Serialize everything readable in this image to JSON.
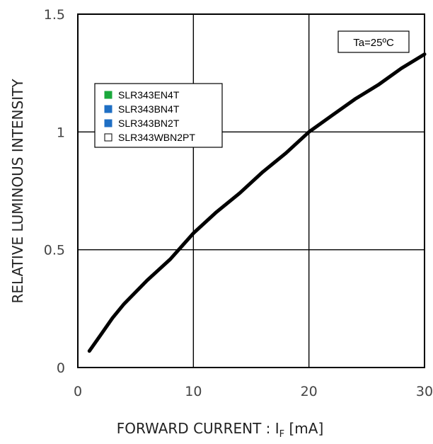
{
  "chart_data": {
    "type": "line",
    "xlabel_prefix": "FORWARD CURRENT : I",
    "xlabel_sub": "F",
    "xlabel_suffix": " [mA]",
    "ylabel": "RELATIVE LUMINOUS INTENSITY",
    "xlim": [
      0,
      30
    ],
    "ylim": [
      0,
      1.5
    ],
    "x_ticks": [
      0,
      10,
      20,
      30
    ],
    "y_ticks": [
      0,
      0.5,
      1,
      1.5
    ],
    "x_tick_labels": [
      "0",
      "10",
      "20",
      "30"
    ],
    "y_tick_labels": [
      "0",
      "0.5",
      "1",
      "1.5"
    ],
    "grid": true,
    "condition_label": "Ta=25ºC",
    "legend": [
      {
        "name": "SLR343EN4T",
        "color": "#1aa83c"
      },
      {
        "name": "SLR343BN4T",
        "color": "#1f6fc4"
      },
      {
        "name": "SLR343BN2T",
        "color": "#1f6fc4"
      },
      {
        "name": "SLR343WBN2PT",
        "color": "#ffffff"
      }
    ],
    "series": [
      {
        "color": "#000000",
        "x": [
          1,
          2,
          3,
          4,
          5,
          6,
          8,
          10,
          12,
          14,
          16,
          18,
          20,
          22,
          24,
          26,
          28,
          30
        ],
        "y": [
          0.07,
          0.14,
          0.21,
          0.27,
          0.32,
          0.37,
          0.46,
          0.57,
          0.66,
          0.74,
          0.83,
          0.91,
          1.0,
          1.07,
          1.14,
          1.2,
          1.27,
          1.33
        ]
      }
    ]
  }
}
